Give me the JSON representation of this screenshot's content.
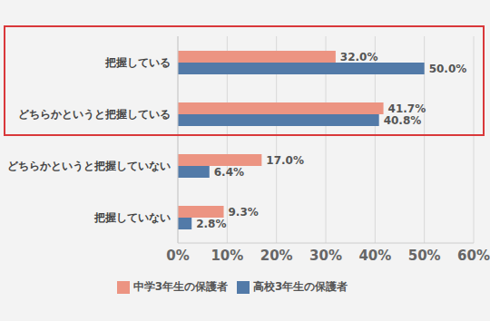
{
  "chart_data": {
    "type": "bar",
    "orientation": "horizontal",
    "categories": [
      "把握している",
      "どちらかというと把握している",
      "どちらかというと把握していない",
      "把握していない"
    ],
    "series": [
      {
        "name": "中学3年生の保護者",
        "color": "#ec9482",
        "values": [
          32.0,
          41.7,
          17.0,
          9.3
        ],
        "value_labels": [
          "32.0%",
          "41.7%",
          "17.0%",
          "9.3%"
        ]
      },
      {
        "name": "高校3年生の保護者",
        "color": "#527aa8",
        "values": [
          50.0,
          40.8,
          6.4,
          2.8
        ],
        "value_labels": [
          "50.0%",
          "40.8%",
          "6.4%",
          "2.8%"
        ]
      }
    ],
    "xlim": [
      0,
      60
    ],
    "xticks": [
      {
        "value": 0,
        "label": "0%"
      },
      {
        "value": 10,
        "label": "10%"
      },
      {
        "value": 20,
        "label": "20%"
      },
      {
        "value": 30,
        "label": "30%"
      },
      {
        "value": 40,
        "label": "40%"
      },
      {
        "value": 50,
        "label": "50%"
      },
      {
        "value": 60,
        "label": "60%"
      }
    ],
    "grid": true,
    "legend": "bottom",
    "data_labels": true
  }
}
